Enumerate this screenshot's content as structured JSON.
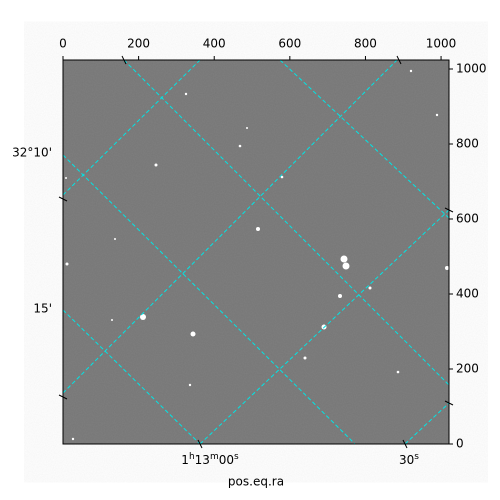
{
  "chart_data": {
    "type": "image",
    "xlabel": "pos.eq.ra",
    "xlim": [
      0,
      1021
    ],
    "ylim": [
      0,
      1024
    ],
    "xticks": [
      0,
      200,
      400,
      600,
      800,
      1000
    ],
    "yticks": [
      0,
      200,
      400,
      600,
      800,
      1000
    ],
    "dec_labels": [
      "32°10'",
      "15'"
    ],
    "ra_labels": [
      [
        "1",
        "h",
        "13",
        "m",
        "00",
        "s"
      ],
      [
        "30",
        "s"
      ]
    ]
  }
}
